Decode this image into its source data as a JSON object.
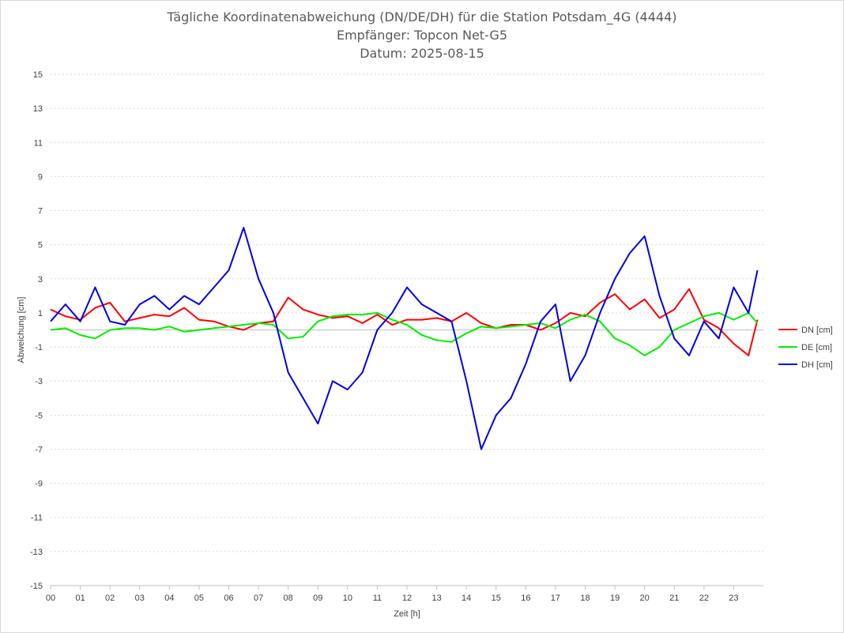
{
  "chart_data": {
    "type": "line",
    "title_lines": [
      "Tägliche Koordinatenabweichung (DN/DE/DH) für die Station Potsdam_4G (4444)",
      "Empfänger: Topcon Net-G5",
      "Datum: 2025-08-15"
    ],
    "xlabel": "Zeit [h]",
    "ylabel": "Abweichung [cm]",
    "xlim": [
      0,
      24
    ],
    "ylim": [
      -15,
      15
    ],
    "x_tick_labels": [
      "00",
      "01",
      "02",
      "03",
      "04",
      "05",
      "06",
      "07",
      "08",
      "09",
      "10",
      "11",
      "12",
      "13",
      "14",
      "15",
      "16",
      "17",
      "18",
      "19",
      "20",
      "21",
      "22",
      "23"
    ],
    "y_tick_labels": [
      "15",
      "13",
      "11",
      "9",
      "7",
      "5",
      "3",
      "1",
      "-1",
      "-3",
      "-5",
      "-7",
      "-9",
      "-11",
      "-13",
      "-15"
    ],
    "grid": "horizontal dotted",
    "legend_position": "right",
    "x": [
      0.0,
      0.5,
      1.0,
      1.5,
      2.0,
      2.5,
      3.0,
      3.5,
      4.0,
      4.5,
      5.0,
      5.5,
      6.0,
      6.5,
      7.0,
      7.5,
      8.0,
      8.5,
      9.0,
      9.5,
      10.0,
      10.5,
      11.0,
      11.5,
      12.0,
      12.5,
      13.0,
      13.5,
      14.0,
      14.5,
      15.0,
      15.5,
      16.0,
      16.5,
      17.0,
      17.5,
      18.0,
      18.5,
      19.0,
      19.5,
      20.0,
      20.5,
      21.0,
      21.5,
      22.0,
      22.5,
      23.0,
      23.5,
      23.8
    ],
    "series": [
      {
        "name": "DN [cm]",
        "color": "#ff0000",
        "values": [
          1.2,
          0.8,
          0.6,
          1.3,
          1.6,
          0.5,
          0.7,
          0.9,
          0.8,
          1.3,
          0.6,
          0.5,
          0.2,
          0.0,
          0.4,
          0.5,
          1.9,
          1.2,
          0.9,
          0.7,
          0.8,
          0.4,
          0.9,
          0.3,
          0.6,
          0.6,
          0.7,
          0.5,
          1.0,
          0.4,
          0.1,
          0.3,
          0.3,
          0.0,
          0.4,
          1.0,
          0.8,
          1.6,
          2.1,
          1.2,
          1.8,
          0.7,
          1.2,
          2.4,
          0.6,
          0.1,
          -0.8,
          -1.5,
          0.6
        ]
      },
      {
        "name": "DE [cm]",
        "color": "#00ee00",
        "values": [
          0.0,
          0.1,
          -0.3,
          -0.5,
          0.0,
          0.1,
          0.1,
          0.0,
          0.2,
          -0.1,
          0.0,
          0.1,
          0.2,
          0.3,
          0.4,
          0.3,
          -0.5,
          -0.4,
          0.5,
          0.8,
          0.9,
          0.9,
          1.0,
          0.6,
          0.3,
          -0.3,
          -0.6,
          -0.7,
          -0.2,
          0.2,
          0.1,
          0.2,
          0.3,
          0.4,
          0.1,
          0.6,
          0.9,
          0.5,
          -0.5,
          -0.9,
          -1.5,
          -1.0,
          0.0,
          0.4,
          0.8,
          1.0,
          0.6,
          1.0,
          0.4
        ]
      },
      {
        "name": "DH [cm]",
        "color": "#0000dd",
        "values": [
          0.5,
          1.5,
          0.5,
          2.5,
          0.5,
          0.3,
          1.5,
          2.0,
          1.2,
          2.0,
          1.5,
          2.5,
          3.5,
          6.0,
          3.0,
          1.0,
          -2.5,
          -4.0,
          -5.5,
          -3.0,
          -3.5,
          -2.5,
          0.0,
          1.0,
          2.5,
          1.5,
          1.0,
          0.5,
          -3.0,
          -7.0,
          -5.0,
          -4.0,
          -2.0,
          0.5,
          1.5,
          -3.0,
          -1.5,
          1.0,
          3.0,
          4.5,
          5.5,
          2.0,
          -0.5,
          -1.5,
          0.5,
          -0.5,
          2.5,
          1.0,
          3.5
        ]
      }
    ]
  }
}
